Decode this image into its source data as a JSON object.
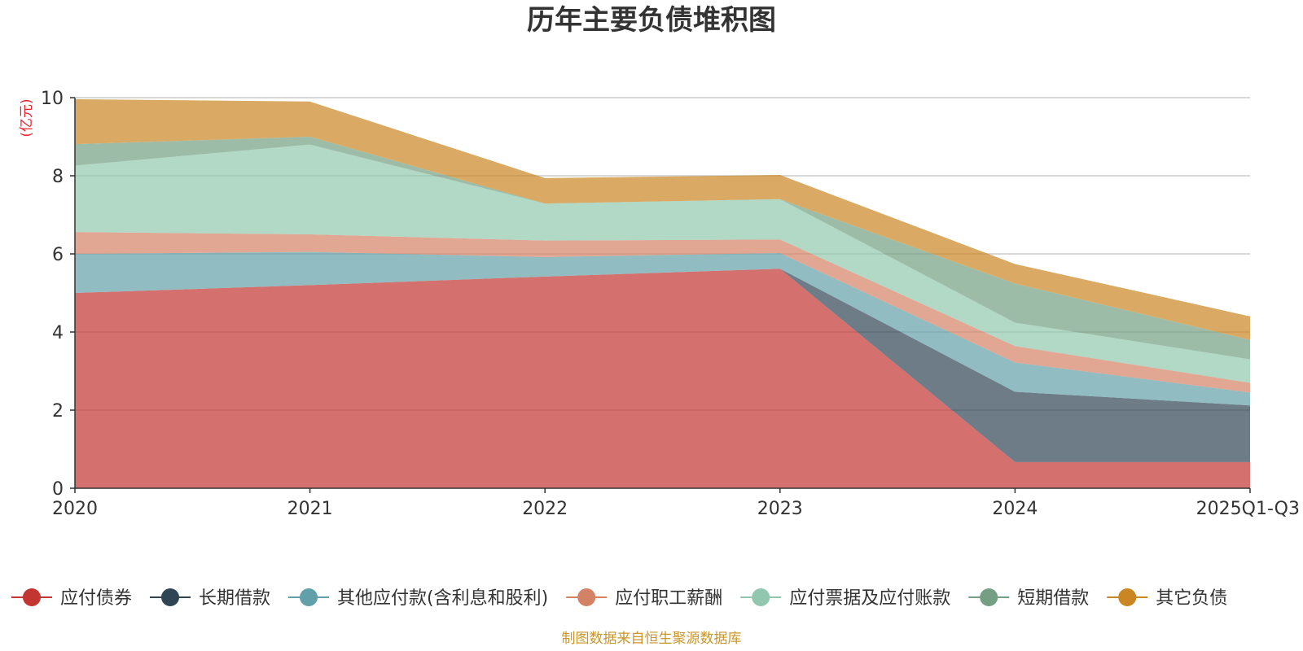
{
  "chart_data": {
    "type": "area",
    "stacked": true,
    "title": "历年主要负债堆积图",
    "ylabel": "(亿元)",
    "ylim": [
      0,
      10
    ],
    "yticks": [
      0,
      2,
      4,
      6,
      8,
      10
    ],
    "categories": [
      "2020",
      "2021",
      "2022",
      "2023",
      "2024",
      "2025Q1-Q3"
    ],
    "grid": true,
    "legend_position": "bottom",
    "series": [
      {
        "name": "应付债券",
        "color": "#c23531",
        "values": [
          5.0,
          5.2,
          5.42,
          5.62,
          0.67,
          0.67
        ]
      },
      {
        "name": "长期借款",
        "color": "#2f4554",
        "values": [
          0.0,
          0.0,
          0.0,
          0.0,
          1.8,
          1.45
        ]
      },
      {
        "name": "其他应付款(含利息和股利)",
        "color": "#61a0a8",
        "values": [
          1.0,
          0.85,
          0.5,
          0.4,
          0.75,
          0.33
        ]
      },
      {
        "name": "应付职工薪酬",
        "color": "#d48265",
        "values": [
          0.56,
          0.45,
          0.42,
          0.35,
          0.42,
          0.25
        ]
      },
      {
        "name": "应付票据及应付账款",
        "color": "#91c7ae",
        "values": [
          1.7,
          2.3,
          0.95,
          1.03,
          0.6,
          0.6
        ]
      },
      {
        "name": "短期借款",
        "color": "#749f83",
        "values": [
          0.55,
          0.2,
          0.0,
          0.0,
          1.0,
          0.5
        ]
      },
      {
        "name": "其它负债",
        "color": "#ca8622",
        "values": [
          1.15,
          0.9,
          0.65,
          0.62,
          0.5,
          0.6
        ]
      }
    ]
  },
  "source_note": "制图数据来自恒生聚源数据库"
}
